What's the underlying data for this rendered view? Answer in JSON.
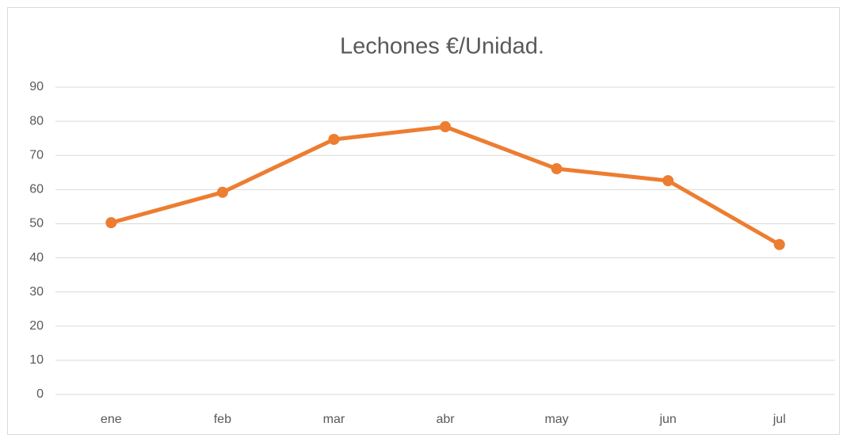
{
  "chart_data": {
    "type": "line",
    "title": "Lechones €/Unidad.",
    "categories": [
      "ene",
      "feb",
      "mar",
      "abr",
      "may",
      "jun",
      "jul"
    ],
    "series": [
      {
        "name": "Lechones",
        "color": "#ed7d31",
        "values": [
          50.3,
          59.2,
          74.7,
          78.4,
          66.1,
          62.6,
          43.9
        ]
      }
    ],
    "ylim": [
      0,
      90
    ],
    "yticks": [
      0,
      10,
      20,
      30,
      40,
      50,
      60,
      70,
      80,
      90
    ],
    "grid": true
  }
}
